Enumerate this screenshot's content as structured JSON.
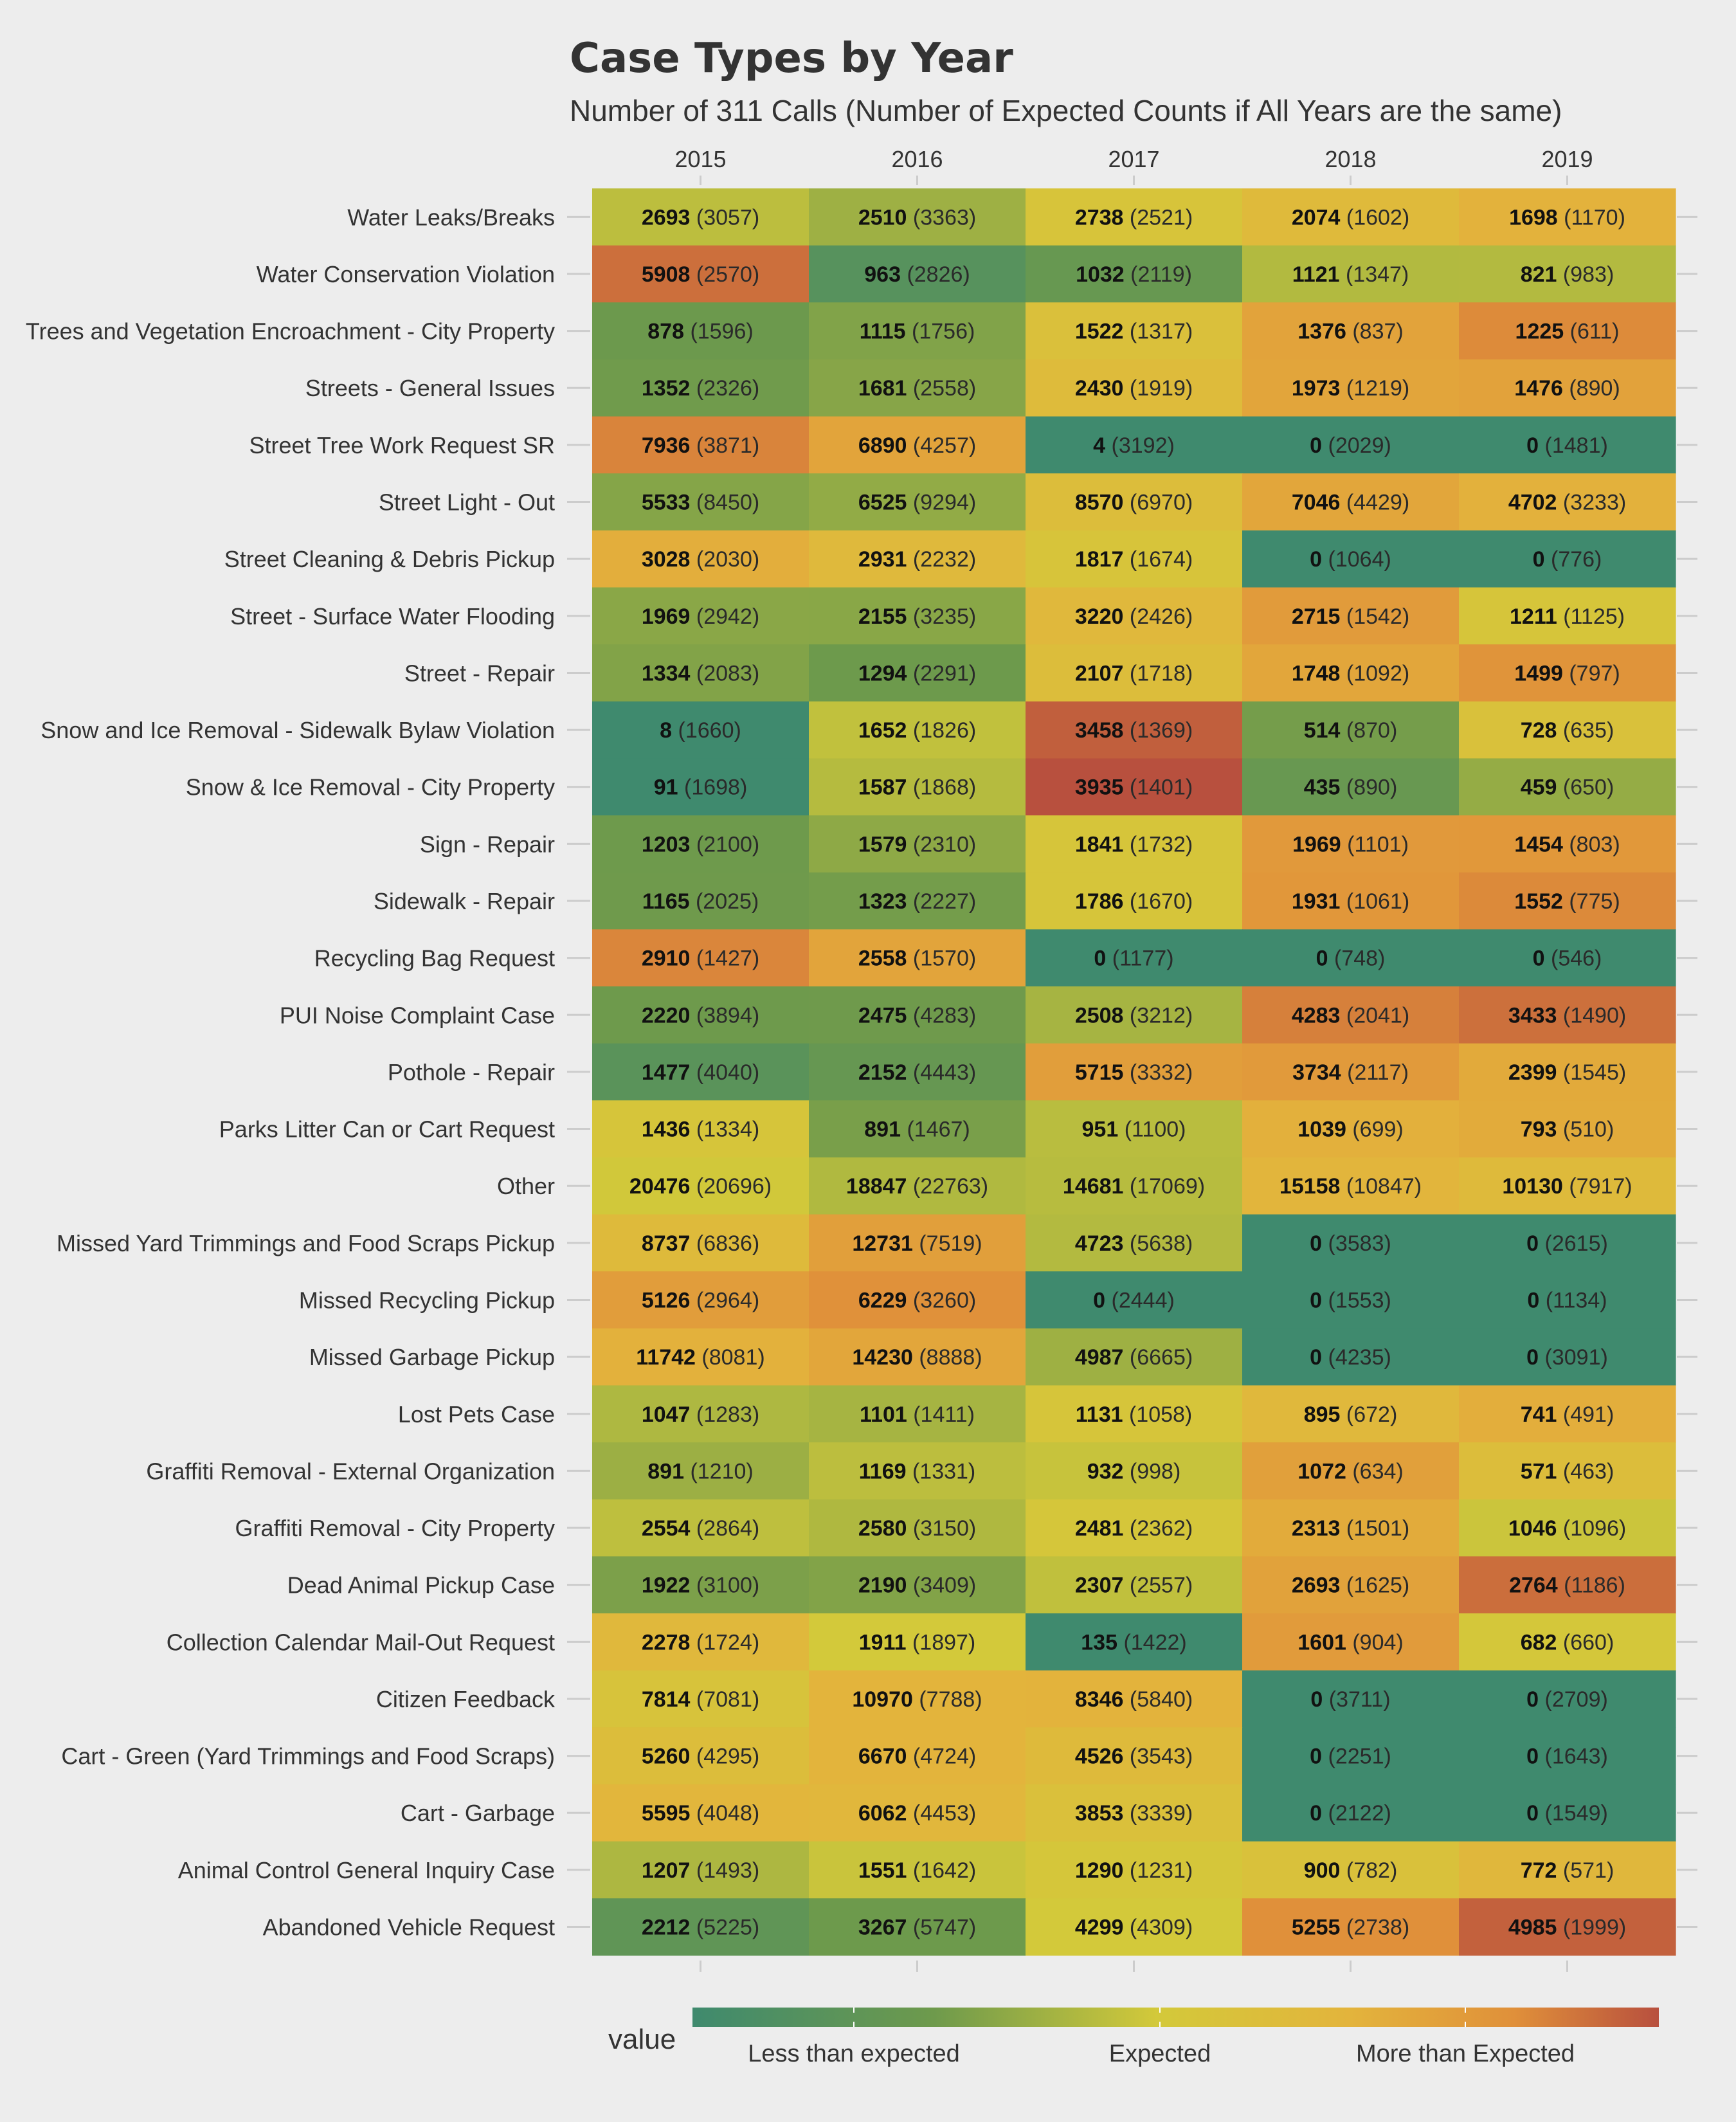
{
  "chart_data": {
    "type": "heatmap",
    "title": "Case Types by Year",
    "subtitle": "Number of 311 Calls (Number of Expected Counts if All Years are the same)",
    "x": [
      "2015",
      "2016",
      "2017",
      "2018",
      "2019"
    ],
    "categories": [
      "Water Leaks/Breaks",
      "Water Conservation Violation",
      "Trees and Vegetation Encroachment - City Property",
      "Streets - General Issues",
      "Street Tree Work Request SR",
      "Street Light - Out",
      "Street Cleaning & Debris Pickup",
      "Street - Surface Water Flooding",
      "Street - Repair",
      "Snow and Ice Removal - Sidewalk Bylaw Violation",
      "Snow & Ice Removal - City Property",
      "Sign - Repair",
      "Sidewalk - Repair",
      "Recycling Bag Request",
      "PUI Noise Complaint Case",
      "Pothole - Repair",
      "Parks Litter Can or Cart Request",
      "Other",
      "Missed Yard Trimmings and Food Scraps Pickup",
      "Missed Recycling Pickup",
      "Missed Garbage Pickup",
      "Lost Pets Case",
      "Graffiti Removal - External Organization",
      "Graffiti Removal - City Property",
      "Dead Animal Pickup Case",
      "Collection Calendar Mail-Out Request",
      "Citizen Feedback",
      "Cart - Green (Yard Trimmings and Food Scraps)",
      "Cart - Garbage",
      "Animal Control General Inquiry Case",
      "Abandoned Vehicle Request"
    ],
    "observed": [
      [
        2693,
        2510,
        2738,
        2074,
        1698
      ],
      [
        5908,
        963,
        1032,
        1121,
        821
      ],
      [
        878,
        1115,
        1522,
        1376,
        1225
      ],
      [
        1352,
        1681,
        2430,
        1973,
        1476
      ],
      [
        7936,
        6890,
        4,
        0,
        0
      ],
      [
        5533,
        6525,
        8570,
        7046,
        4702
      ],
      [
        3028,
        2931,
        1817,
        0,
        0
      ],
      [
        1969,
        2155,
        3220,
        2715,
        1211
      ],
      [
        1334,
        1294,
        2107,
        1748,
        1499
      ],
      [
        8,
        1652,
        3458,
        514,
        728
      ],
      [
        91,
        1587,
        3935,
        435,
        459
      ],
      [
        1203,
        1579,
        1841,
        1969,
        1454
      ],
      [
        1165,
        1323,
        1786,
        1931,
        1552
      ],
      [
        2910,
        2558,
        0,
        0,
        0
      ],
      [
        2220,
        2475,
        2508,
        4283,
        3433
      ],
      [
        1477,
        2152,
        5715,
        3734,
        2399
      ],
      [
        1436,
        891,
        951,
        1039,
        793
      ],
      [
        20476,
        18847,
        14681,
        15158,
        10130
      ],
      [
        8737,
        12731,
        4723,
        0,
        0
      ],
      [
        5126,
        6229,
        0,
        0,
        0
      ],
      [
        11742,
        14230,
        4987,
        0,
        0
      ],
      [
        1047,
        1101,
        1131,
        895,
        741
      ],
      [
        891,
        1169,
        932,
        1072,
        571
      ],
      [
        2554,
        2580,
        2481,
        2313,
        1046
      ],
      [
        1922,
        2190,
        2307,
        2693,
        2764
      ],
      [
        2278,
        1911,
        135,
        1601,
        682
      ],
      [
        7814,
        10970,
        8346,
        0,
        0
      ],
      [
        5260,
        6670,
        4526,
        0,
        0
      ],
      [
        5595,
        6062,
        3853,
        0,
        0
      ],
      [
        1207,
        1551,
        1290,
        900,
        772
      ],
      [
        2212,
        3267,
        4299,
        5255,
        4985
      ]
    ],
    "expected": [
      [
        3057,
        3363,
        2521,
        1602,
        1170
      ],
      [
        2570,
        2826,
        2119,
        1347,
        983
      ],
      [
        1596,
        1756,
        1317,
        837,
        611
      ],
      [
        2326,
        2558,
        1919,
        1219,
        890
      ],
      [
        3871,
        4257,
        3192,
        2029,
        1481
      ],
      [
        8450,
        9294,
        6970,
        4429,
        3233
      ],
      [
        2030,
        2232,
        1674,
        1064,
        776
      ],
      [
        2942,
        3235,
        2426,
        1542,
        1125
      ],
      [
        2083,
        2291,
        1718,
        1092,
        797
      ],
      [
        1660,
        1826,
        1369,
        870,
        635
      ],
      [
        1698,
        1868,
        1401,
        890,
        650
      ],
      [
        2100,
        2310,
        1732,
        1101,
        803
      ],
      [
        2025,
        2227,
        1670,
        1061,
        775
      ],
      [
        1427,
        1570,
        1177,
        748,
        546
      ],
      [
        3894,
        4283,
        3212,
        2041,
        1490
      ],
      [
        4040,
        4443,
        3332,
        2117,
        1545
      ],
      [
        1334,
        1467,
        1100,
        699,
        510
      ],
      [
        20696,
        22763,
        17069,
        10847,
        7917
      ],
      [
        6836,
        7519,
        5638,
        3583,
        2615
      ],
      [
        2964,
        3260,
        2444,
        1553,
        1134
      ],
      [
        8081,
        8888,
        6665,
        4235,
        3091
      ],
      [
        1283,
        1411,
        1058,
        672,
        491
      ],
      [
        1210,
        1331,
        998,
        634,
        463
      ],
      [
        2864,
        3150,
        2362,
        1501,
        1096
      ],
      [
        3100,
        3409,
        2557,
        1625,
        1186
      ],
      [
        1724,
        1897,
        1422,
        904,
        660
      ],
      [
        7081,
        7788,
        5840,
        3711,
        2709
      ],
      [
        4295,
        4724,
        3543,
        2251,
        1643
      ],
      [
        4048,
        4453,
        3339,
        2122,
        1549
      ],
      [
        1493,
        1642,
        1231,
        782,
        571
      ],
      [
        5225,
        5747,
        4309,
        2738,
        1999
      ]
    ],
    "legend": {
      "title": "value",
      "position": "bottom",
      "labels": [
        "Less than expected",
        "Expected",
        "More than Expected"
      ],
      "colors": [
        "#3f8a6e",
        "#6e9a4c",
        "#d3c93a",
        "#e3b43c",
        "#e0903a",
        "#b8503e"
      ]
    },
    "grid": false
  }
}
